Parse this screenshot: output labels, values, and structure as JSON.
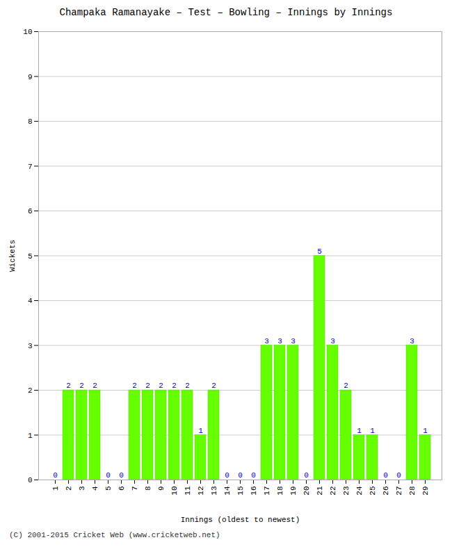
{
  "chart_data": {
    "type": "bar",
    "title": "Champaka Ramanayake – Test – Bowling – Innings by Innings",
    "xlabel": "Innings (oldest to newest)",
    "ylabel": "Wickets",
    "footnote": "(C) 2001-2015 Cricket Web (www.cricketweb.net)",
    "categories": [
      "1",
      "2",
      "3",
      "4",
      "5",
      "6",
      "7",
      "8",
      "9",
      "10",
      "11",
      "12",
      "13",
      "14",
      "15",
      "16",
      "17",
      "18",
      "19",
      "20",
      "21",
      "22",
      "23",
      "24",
      "25",
      "26",
      "27",
      "28",
      "29"
    ],
    "values": [
      0,
      2,
      2,
      2,
      0,
      0,
      2,
      2,
      2,
      2,
      2,
      1,
      2,
      0,
      0,
      0,
      3,
      3,
      3,
      0,
      5,
      3,
      2,
      1,
      1,
      0,
      0,
      3,
      1
    ],
    "color": "#66ff00",
    "ylim": [
      0,
      10
    ],
    "yticks": [
      0,
      1,
      2,
      3,
      4,
      5,
      6,
      7,
      8,
      9,
      10
    ],
    "grid": true,
    "data_labels": true
  }
}
